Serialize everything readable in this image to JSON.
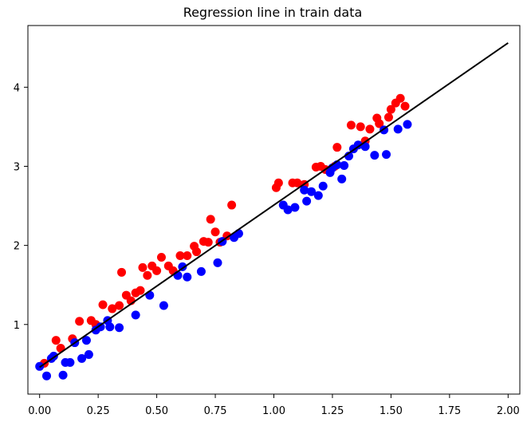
{
  "chart_data": {
    "type": "scatter",
    "title": "Regression line in train data",
    "xlabel": "",
    "ylabel": "",
    "xlim": [
      -0.05,
      2.05
    ],
    "ylim": [
      0.12,
      4.78
    ],
    "xticks": [
      "0.00",
      "0.25",
      "0.50",
      "0.75",
      "1.00",
      "1.25",
      "1.50",
      "1.75",
      "2.00"
    ],
    "yticks": [
      "1",
      "2",
      "3",
      "4"
    ],
    "grid": false,
    "legend": "none",
    "series": [
      {
        "color": "#ff0000",
        "kind": "points",
        "x": [
          0.02,
          0.07,
          0.09,
          0.14,
          0.17,
          0.22,
          0.24,
          0.27,
          0.31,
          0.34,
          0.35,
          0.37,
          0.39,
          0.41,
          0.43,
          0.44,
          0.46,
          0.48,
          0.5,
          0.52,
          0.55,
          0.57,
          0.6,
          0.63,
          0.66,
          0.67,
          0.7,
          0.73,
          0.72,
          0.75,
          0.77,
          0.8,
          0.82,
          1.01,
          1.02,
          1.08,
          1.1,
          1.13,
          1.18,
          1.2,
          1.22,
          1.26,
          1.27,
          1.33,
          1.37,
          1.39,
          1.41,
          1.44,
          1.45,
          1.49,
          1.5,
          1.52,
          1.54,
          1.56
        ],
        "y": [
          0.51,
          0.8,
          0.7,
          0.82,
          1.04,
          1.05,
          1.0,
          1.25,
          1.2,
          1.24,
          1.66,
          1.37,
          1.3,
          1.4,
          1.43,
          1.72,
          1.62,
          1.74,
          1.68,
          1.85,
          1.74,
          1.68,
          1.87,
          1.87,
          1.99,
          1.92,
          2.05,
          2.33,
          2.04,
          2.17,
          2.04,
          2.12,
          2.51,
          2.73,
          2.79,
          2.79,
          2.79,
          2.77,
          2.99,
          3.0,
          2.96,
          3.0,
          3.24,
          3.52,
          3.5,
          3.32,
          3.47,
          3.61,
          3.54,
          3.62,
          3.72,
          3.8,
          3.86,
          3.76
        ]
      },
      {
        "color": "#0000ff",
        "kind": "points",
        "x": [
          0.0,
          0.03,
          0.05,
          0.06,
          0.1,
          0.11,
          0.13,
          0.15,
          0.18,
          0.2,
          0.21,
          0.24,
          0.26,
          0.29,
          0.3,
          0.34,
          0.41,
          0.47,
          0.53,
          0.59,
          0.61,
          0.63,
          0.69,
          0.76,
          0.78,
          0.83,
          0.85,
          1.04,
          1.06,
          1.09,
          1.13,
          1.14,
          1.16,
          1.19,
          1.21,
          1.24,
          1.25,
          1.27,
          1.29,
          1.3,
          1.32,
          1.34,
          1.36,
          1.39,
          1.43,
          1.47,
          1.48,
          1.53,
          1.57
        ],
        "y": [
          0.47,
          0.35,
          0.57,
          0.6,
          0.36,
          0.52,
          0.52,
          0.77,
          0.57,
          0.8,
          0.62,
          0.93,
          0.97,
          1.05,
          0.97,
          0.96,
          1.12,
          1.37,
          1.24,
          1.62,
          1.73,
          1.6,
          1.67,
          1.78,
          2.05,
          2.1,
          2.15,
          2.51,
          2.45,
          2.48,
          2.7,
          2.56,
          2.68,
          2.63,
          2.75,
          2.92,
          2.98,
          3.02,
          2.84,
          3.01,
          3.13,
          3.22,
          3.27,
          3.25,
          3.14,
          3.46,
          3.15,
          3.47,
          3.53
        ]
      },
      {
        "color": "#000000",
        "kind": "line",
        "x": [
          0.0,
          2.0
        ],
        "y": [
          0.46,
          4.56
        ]
      }
    ]
  }
}
